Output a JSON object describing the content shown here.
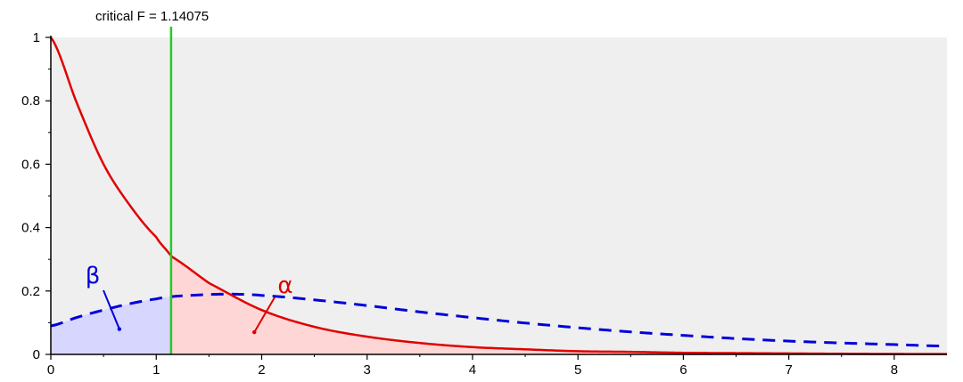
{
  "chart_data": {
    "type": "area",
    "title": "",
    "xlabel": "",
    "ylabel": "",
    "xlim": [
      0,
      8.5
    ],
    "ylim": [
      0,
      1
    ],
    "x_ticks": [
      0,
      1,
      2,
      3,
      4,
      5,
      6,
      7,
      8
    ],
    "y_ticks": [
      0,
      0.2,
      0.4,
      0.6,
      0.8,
      1
    ],
    "x_tick_labels": [
      "0",
      "1",
      "2",
      "3",
      "4",
      "5",
      "6",
      "7",
      "8"
    ],
    "y_tick_labels": [
      "0",
      "0.2",
      "0.4",
      "0.6",
      "0.8",
      "1"
    ],
    "grid": false,
    "critical_value": 1.14075,
    "critical_label": "critical F =  1.14075",
    "series": [
      {
        "label": "α",
        "style": "solid",
        "color": "#e00000",
        "fill_color": "#ffd6d6",
        "shaded_region": "x ≥ critical F",
        "x": [
          0,
          0.25,
          0.5,
          0.75,
          1.0,
          1.14,
          1.5,
          2.0,
          2.5,
          3.0,
          3.5,
          4.0,
          4.5,
          5.0,
          5.5,
          6.0,
          6.5,
          7.0,
          7.5,
          8.0,
          8.5
        ],
        "y": [
          1.0,
          0.79,
          0.6,
          0.47,
          0.37,
          0.31,
          0.225,
          0.14,
          0.087,
          0.056,
          0.036,
          0.023,
          0.016,
          0.01,
          0.008,
          0.005,
          0.004,
          0.003,
          0.002,
          0.0013,
          0.001
        ]
      },
      {
        "label": "β",
        "style": "dashed",
        "color": "#0000dd",
        "fill_color": "#d6d6ff",
        "shaded_region": "x ≤ critical F",
        "x": [
          0,
          0.25,
          0.5,
          0.75,
          1.0,
          1.14,
          1.25,
          1.5,
          1.75,
          2.0,
          2.5,
          3.0,
          3.5,
          4.0,
          4.5,
          5.0,
          5.5,
          6.0,
          6.5,
          7.0,
          7.5,
          8.0,
          8.5
        ],
        "y": [
          0.09,
          0.117,
          0.14,
          0.16,
          0.175,
          0.182,
          0.185,
          0.189,
          0.19,
          0.186,
          0.172,
          0.154,
          0.134,
          0.116,
          0.099,
          0.084,
          0.071,
          0.06,
          0.05,
          0.042,
          0.036,
          0.031,
          0.026
        ]
      }
    ],
    "annotations": [
      {
        "text": "β",
        "color": "#0000dd",
        "pointer_to": [
          0.65,
          0.08
        ]
      },
      {
        "text": "α",
        "color": "#e00000",
        "pointer_to": [
          1.93,
          0.07
        ]
      }
    ],
    "colors": {
      "plot_background": "#efefef",
      "critical_line": "#22cc22",
      "axis": "#000000"
    }
  }
}
